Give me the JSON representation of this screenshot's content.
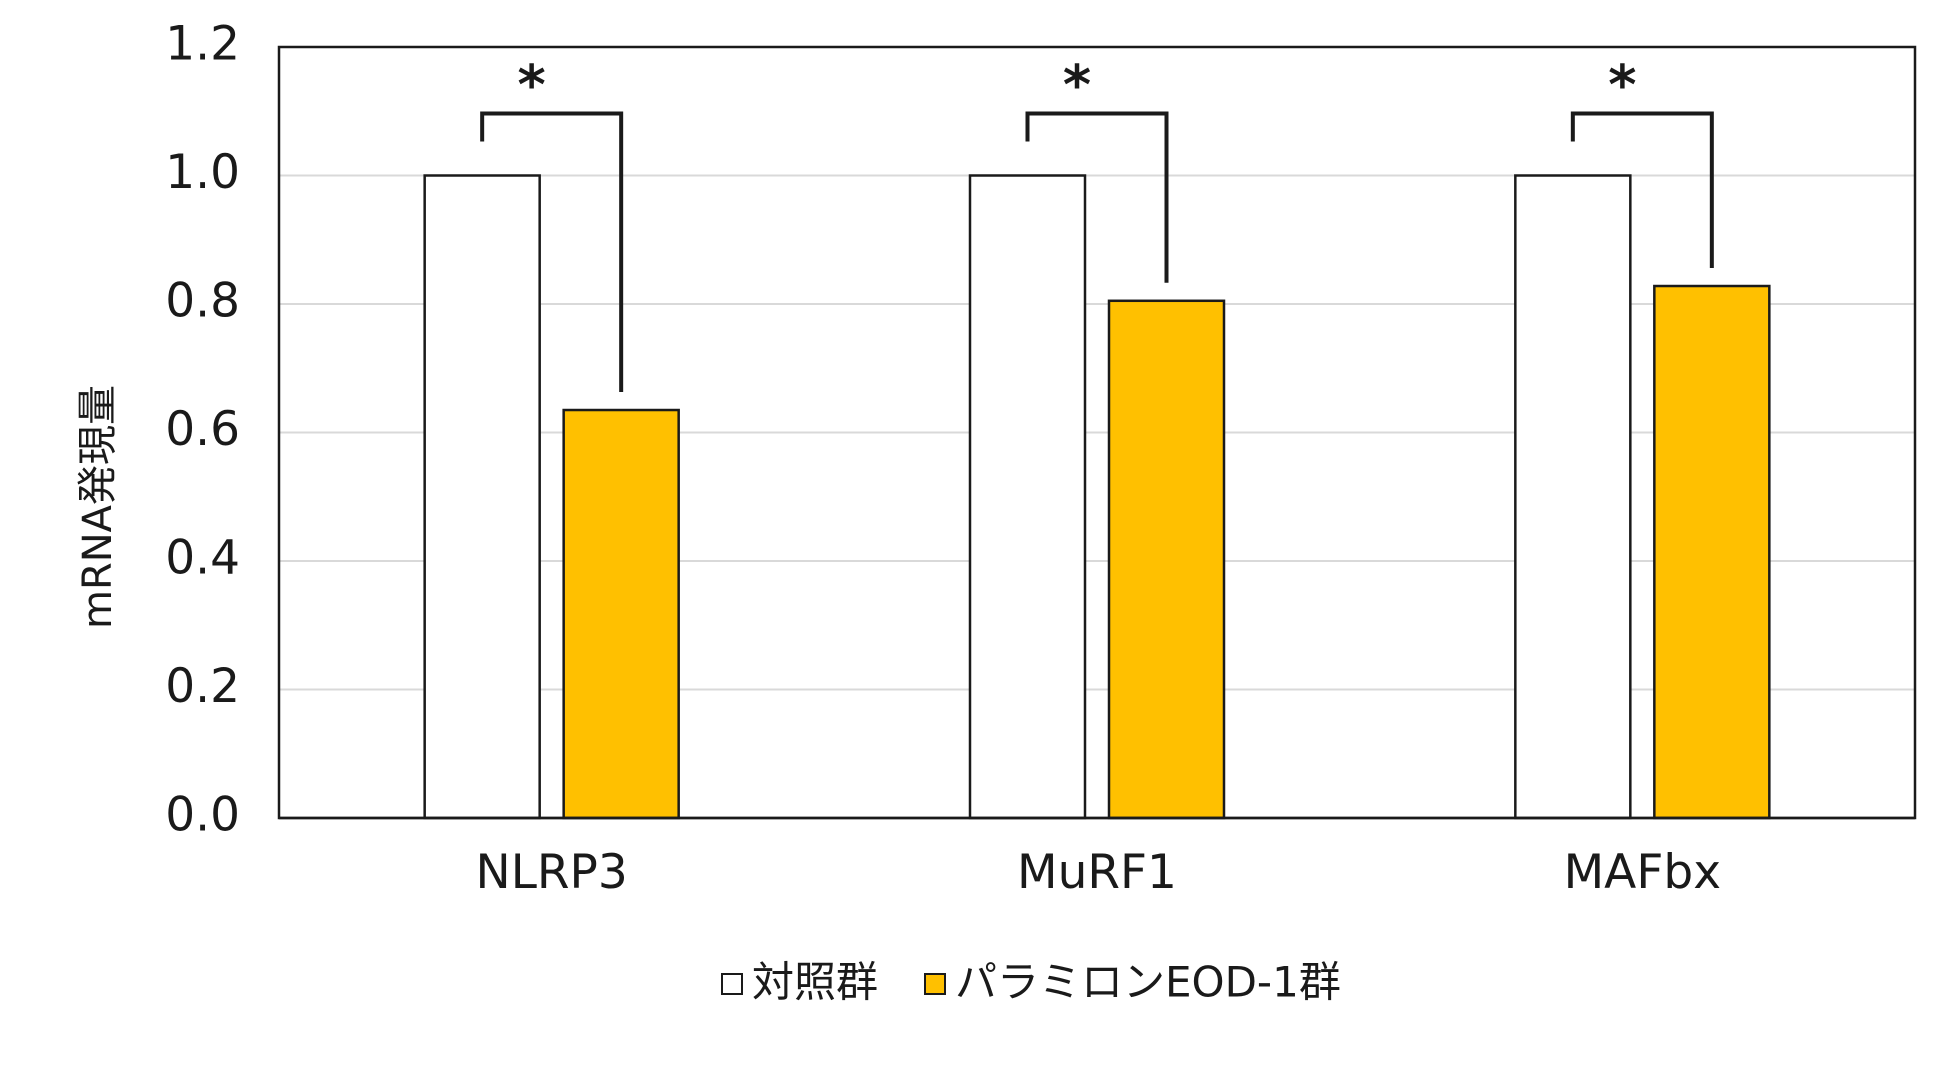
{
  "chart_data": {
    "type": "bar",
    "title": "",
    "xlabel": "",
    "ylabel": "mRNA発現量",
    "ylim": [
      0,
      1.2
    ],
    "yticks": [
      "0.0",
      "0.2",
      "0.4",
      "0.6",
      "0.8",
      "1.0",
      "1.2"
    ],
    "categories": [
      "NLRP3",
      "MuRF1",
      "MAFbx"
    ],
    "series": [
      {
        "name": "対照群",
        "values": [
          1.0,
          1.0,
          1.0
        ],
        "color": "#ffffff"
      },
      {
        "name": "パラミロンEOD-1群",
        "values": [
          0.635,
          0.805,
          0.828
        ],
        "color": "#ffc000"
      }
    ],
    "significance": [
      {
        "category": "NLRP3",
        "label": "*"
      },
      {
        "category": "MuRF1",
        "label": "*"
      },
      {
        "category": "MAFbx",
        "label": "*"
      }
    ],
    "grid": true,
    "legend_position": "bottom-center",
    "colors": {
      "gridline": "#d9d9d9",
      "axis": "#1a1a1a",
      "bar_stroke": "#1a1a1a"
    }
  }
}
